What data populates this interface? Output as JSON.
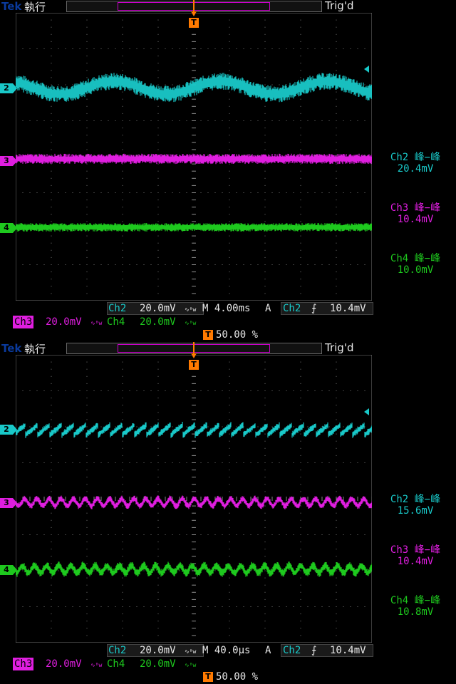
{
  "brand": "Tek",
  "run_state": "執行",
  "trig_state": "Trig'd",
  "trigger_marker": "T",
  "colors": {
    "ch2": "#19c9c9",
    "ch3": "#e01ee0",
    "ch4": "#1ec91e",
    "trigger": "#ff7a00",
    "brand": "#0a3a9c"
  },
  "screens": [
    {
      "channels": {
        "ch2_marker": "2",
        "ch3_marker": "3",
        "ch4_marker": "4"
      },
      "measurements": [
        {
          "label": "Ch2 峰−峰",
          "value": "20.4mV"
        },
        {
          "label": "Ch3 峰−峰",
          "value": "10.4mV"
        },
        {
          "label": "Ch4 峰−峰",
          "value": "10.0mV"
        }
      ],
      "status": {
        "ch2_label": "Ch2",
        "ch2_scale": "20.0mV",
        "timebase": "M 4.00ms",
        "trigger_mode": "A",
        "trigger_source": "Ch2",
        "trigger_slope": "⨍",
        "trigger_level": "10.4mV",
        "ch3_label": "Ch3",
        "ch3_scale": "20.0mV",
        "ch4_label": "Ch4",
        "ch4_scale": "20.0mV",
        "bw_icon": "∿ᴮw",
        "trigger_position": "50.00 %"
      }
    },
    {
      "channels": {
        "ch2_marker": "2",
        "ch3_marker": "3",
        "ch4_marker": "4"
      },
      "measurements": [
        {
          "label": "Ch2 峰−峰",
          "value": "15.6mV"
        },
        {
          "label": "Ch3 峰−峰",
          "value": "10.4mV"
        },
        {
          "label": "Ch4 峰−峰",
          "value": "10.8mV"
        }
      ],
      "status": {
        "ch2_label": "Ch2",
        "ch2_scale": "20.0mV",
        "timebase": "M 40.0µs",
        "trigger_mode": "A",
        "trigger_source": "Ch2",
        "trigger_slope": "⨍",
        "trigger_level": "10.4mV",
        "ch3_label": "Ch3",
        "ch3_scale": "20.0mV",
        "ch4_label": "Ch4",
        "ch4_scale": "20.0mV",
        "bw_icon": "∿ᴮw",
        "trigger_position": "50.00 %"
      }
    }
  ]
}
